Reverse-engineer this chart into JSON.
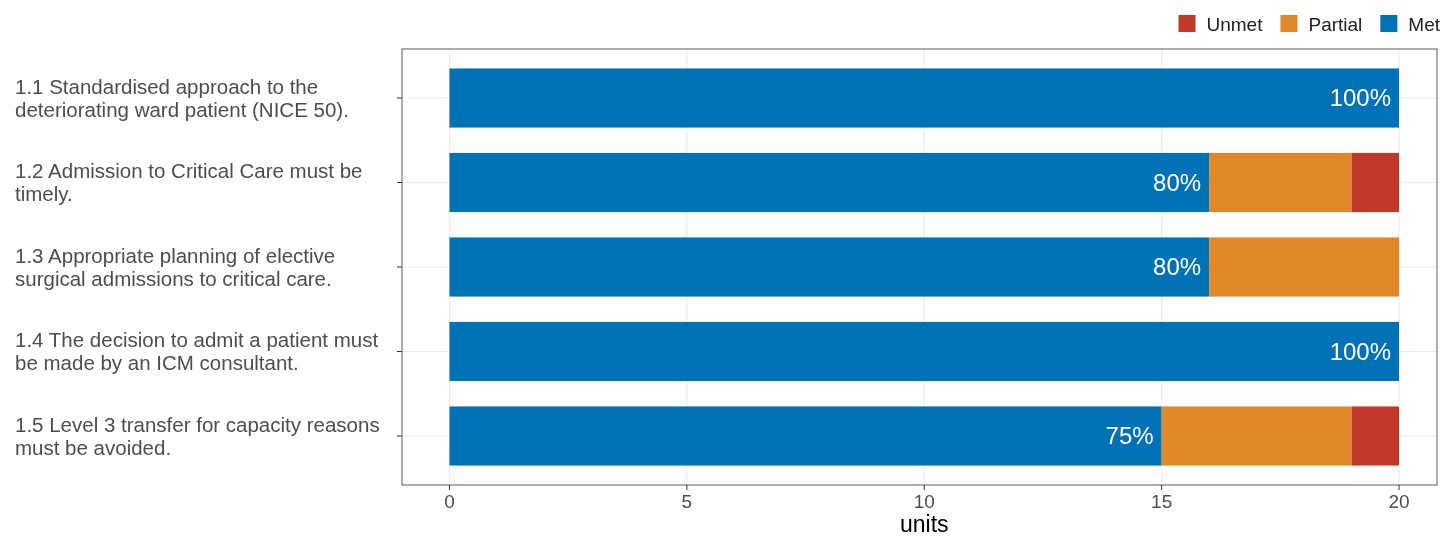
{
  "chart_data": {
    "type": "bar",
    "orientation": "horizontal",
    "stacked": true,
    "xlabel": "units",
    "categories": [
      "1.1 Standardised approach to the deteriorating ward patient (NICE 50).",
      "1.2 Admission to Critical Care must be timely.",
      "1.3 Appropriate planning of elective surgical admissions to critical care.",
      "1.4 The decision to admit a patient must be made by an ICM consultant.",
      "1.5 Level 3 transfer for capacity reasons must be avoided."
    ],
    "series": [
      {
        "name": "Met",
        "color": "#0072b5",
        "values": [
          20,
          16,
          16,
          20,
          15
        ]
      },
      {
        "name": "Partial",
        "color": "#e08828",
        "values": [
          0,
          3,
          4,
          0,
          4
        ]
      },
      {
        "name": "Unmet",
        "color": "#c0392b",
        "values": [
          0,
          1,
          0,
          0,
          1
        ]
      }
    ],
    "annotations": [
      {
        "text": "100%",
        "x": 20,
        "y": "1.1 Standardised approach to the deteriorating ward patient (NICE 50)."
      },
      {
        "text": "80%",
        "x": 16,
        "y": "1.2 Admission to Critical Care must be timely."
      },
      {
        "text": "80%",
        "x": 16,
        "y": "1.3 Appropriate planning of elective surgical admissions to critical care."
      },
      {
        "text": "100%",
        "x": 20,
        "y": "1.4 The decision to admit a patient must be made by an ICM consultant."
      },
      {
        "text": "75%",
        "x": 15,
        "y": "1.5 Level 3 transfer for capacity reasons must be avoided."
      }
    ],
    "xlim": [
      -1,
      20.8
    ],
    "xticks": [
      0,
      5,
      10,
      15,
      20
    ],
    "grid": true,
    "legend": "top right"
  }
}
